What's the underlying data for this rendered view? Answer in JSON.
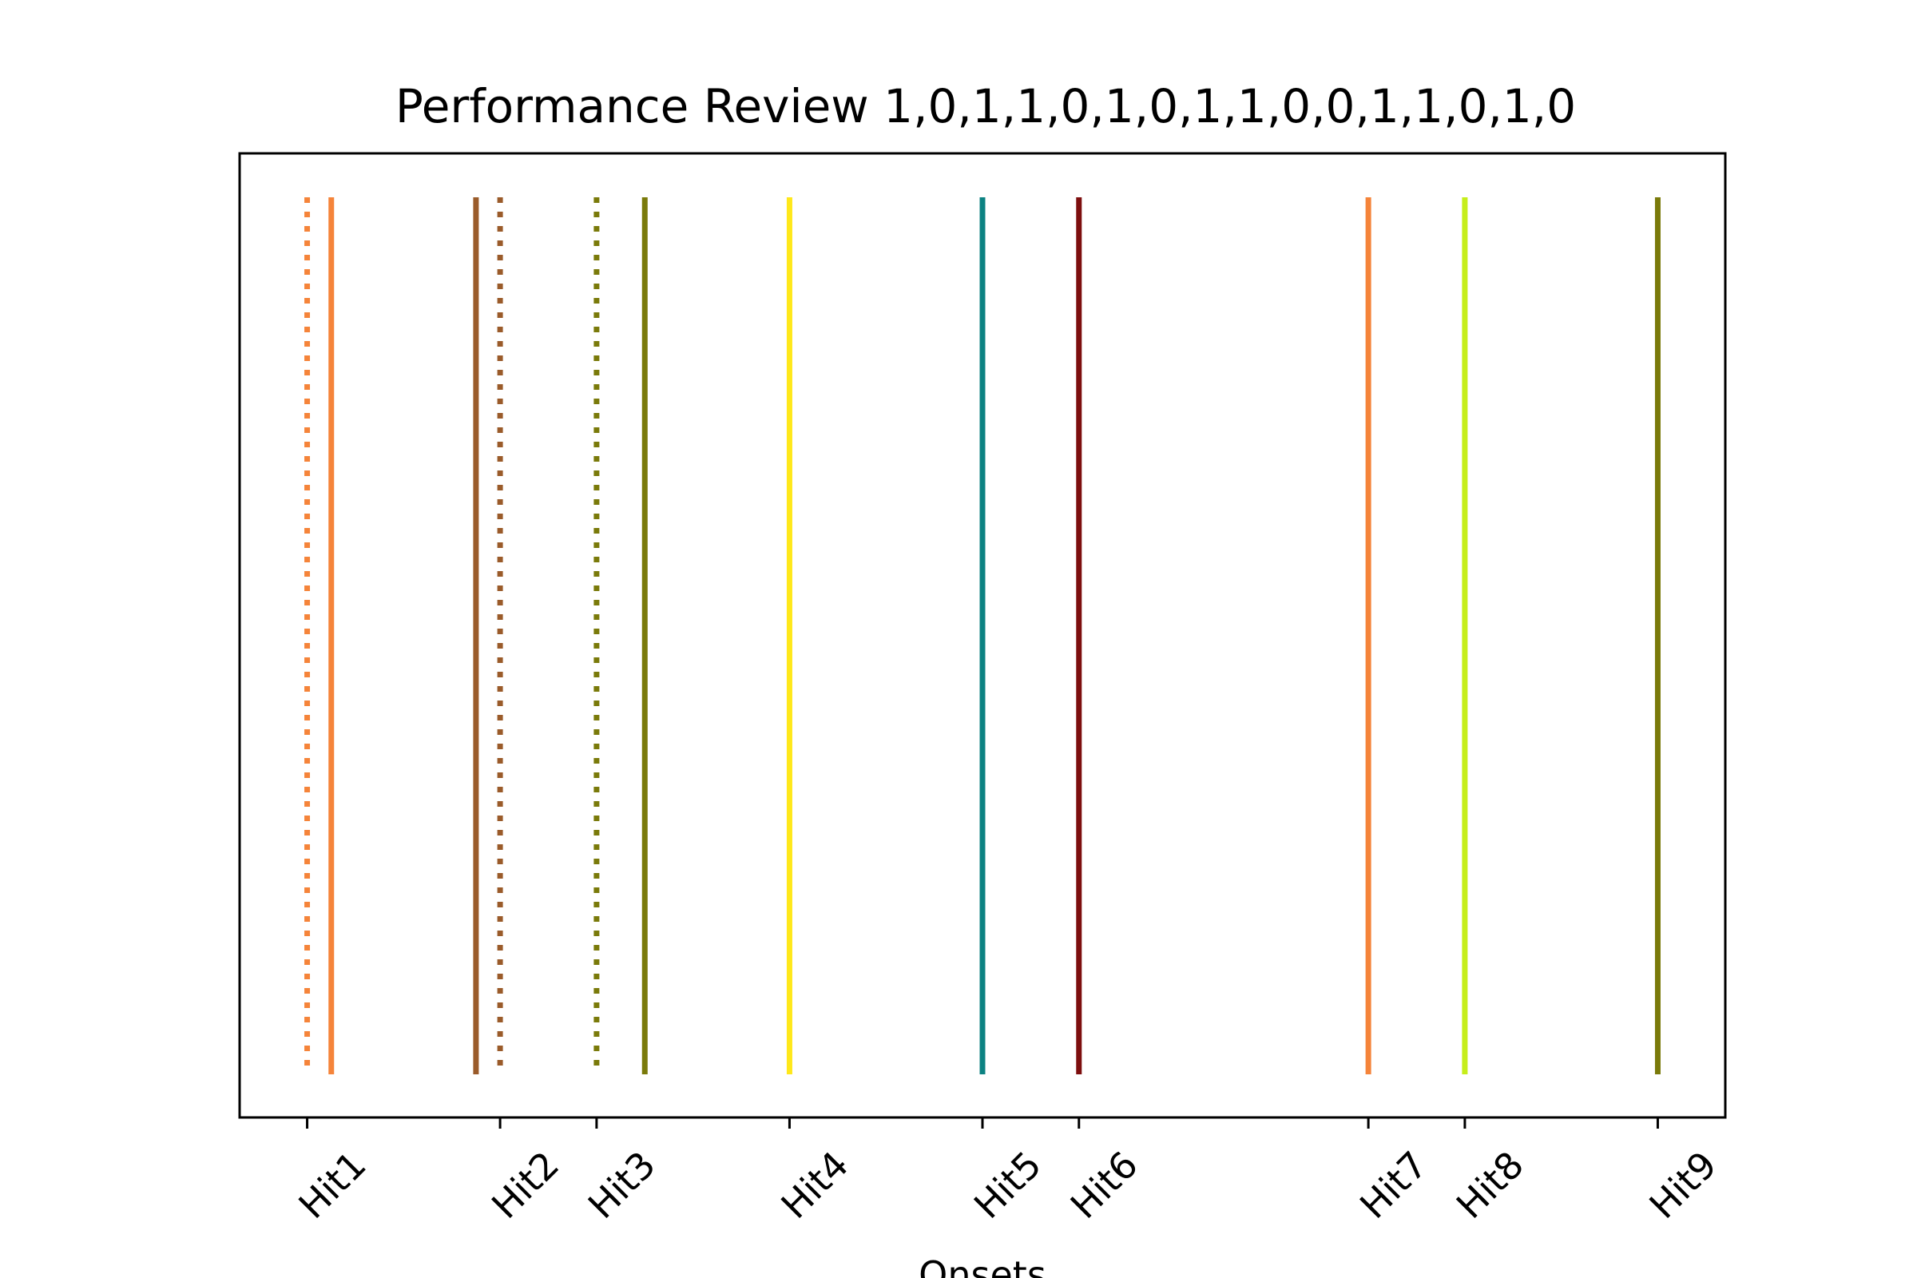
{
  "chart_data": {
    "type": "event-lines",
    "title": "Performance Review 1,0,1,1,0,1,0,1,1,0,0,1,1,0,1,0",
    "xlabel": "Onsets",
    "ylabel": "",
    "xlim": [
      0.3,
      15.7
    ],
    "ylim": [
      0,
      1
    ],
    "grid": false,
    "tick_positions": [
      1,
      3,
      4,
      6,
      8,
      9,
      12,
      13,
      15
    ],
    "tick_labels": [
      "Hit1",
      "Hit2",
      "Hit3",
      "Hit4",
      "Hit5",
      "Hit6",
      "Hit7",
      "Hit8",
      "Hit9"
    ],
    "onsets": [
      {
        "x": 1.0,
        "style": "dotted",
        "color": "#f5843a"
      },
      {
        "x": 1.25,
        "style": "solid",
        "color": "#f5843a"
      },
      {
        "x": 2.75,
        "style": "solid",
        "color": "#9a5b2a"
      },
      {
        "x": 3.0,
        "style": "dotted",
        "color": "#9a5b2a"
      },
      {
        "x": 4.0,
        "style": "dotted",
        "color": "#7a7a0a"
      },
      {
        "x": 4.5,
        "style": "solid",
        "color": "#7a7a0a"
      },
      {
        "x": 6.0,
        "style": "solid",
        "color": "#ffe81a"
      },
      {
        "x": 8.0,
        "style": "solid",
        "color": "#0c8282"
      },
      {
        "x": 9.0,
        "style": "solid",
        "color": "#7d0e0e"
      },
      {
        "x": 12.0,
        "style": "solid",
        "color": "#f5843a"
      },
      {
        "x": 13.0,
        "style": "solid",
        "color": "#c6ee1a"
      },
      {
        "x": 15.0,
        "style": "solid",
        "color": "#7a7a0a"
      }
    ]
  }
}
